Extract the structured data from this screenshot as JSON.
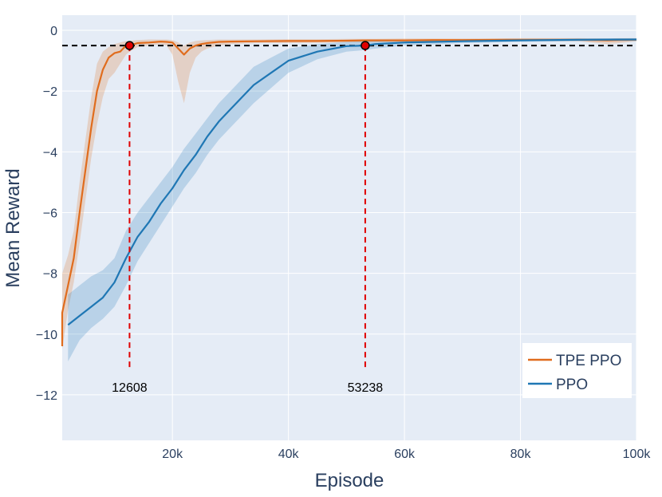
{
  "chart_data": {
    "type": "line",
    "xlabel": "Episode",
    "ylabel": "Mean Reward",
    "xlim": [
      1000,
      100000
    ],
    "ylim": [
      -13.5,
      0.5
    ],
    "x_ticks": [
      20000,
      40000,
      60000,
      80000,
      100000
    ],
    "x_tick_labels": [
      "20k",
      "40k",
      "60k",
      "80k",
      "100k"
    ],
    "y_ticks": [
      0,
      -2,
      -4,
      -6,
      -8,
      -10,
      -12
    ],
    "y_tick_labels": [
      "0",
      "−2",
      "−4",
      "−6",
      "−8",
      "−10",
      "−12"
    ],
    "grid": true,
    "legend_position": "bottom-right",
    "threshold": -0.5,
    "colors": {
      "tpe": "#e06c1d",
      "ppo": "#1f77b4",
      "marker": "#e00000",
      "plot_bg": "#e5ecf6"
    },
    "series": [
      {
        "name": "TPE PPO",
        "x": [
          0,
          1000,
          2000,
          3000,
          4000,
          5000,
          6000,
          7000,
          8000,
          9000,
          10000,
          11000,
          12000,
          12608,
          14000,
          16000,
          18000,
          19000,
          20000,
          21000,
          22000,
          23000,
          24000,
          25000,
          26000,
          28000,
          30000,
          35000,
          40000,
          45000,
          50000,
          53238,
          55000,
          60000,
          65000,
          70000,
          80000,
          90000,
          95000,
          97000,
          100000
        ],
        "y": [
          -10.4,
          -9.3,
          -8.4,
          -7.5,
          -6,
          -4.6,
          -3.2,
          -2,
          -1.3,
          -0.9,
          -0.75,
          -0.7,
          -0.5,
          -0.5,
          -0.42,
          -0.4,
          -0.37,
          -0.38,
          -0.4,
          -0.6,
          -0.8,
          -0.6,
          -0.5,
          -0.45,
          -0.42,
          -0.38,
          -0.37,
          -0.36,
          -0.35,
          -0.35,
          -0.34,
          -0.33,
          -0.33,
          -0.33,
          -0.32,
          -0.32,
          -0.31,
          -0.31,
          -0.33,
          -0.32,
          -0.31
        ],
        "lower": [
          -12.8,
          -10.5,
          -9.2,
          -8.3,
          -7,
          -5.6,
          -4.2,
          -3.1,
          -2.2,
          -1.6,
          -1.4,
          -1.1,
          -0.8,
          -0.7,
          -0.55,
          -0.5,
          -0.45,
          -0.5,
          -0.8,
          -1.7,
          -2.4,
          -1.4,
          -0.9,
          -0.7,
          -0.6,
          -0.5,
          -0.45,
          -0.42,
          -0.42,
          -0.41,
          -0.4,
          -0.4,
          -0.39,
          -0.38,
          -0.37,
          -0.36,
          -0.35,
          -0.36,
          -0.45,
          -0.42,
          -0.36
        ],
        "upper": [
          -8.5,
          -8,
          -7.4,
          -6.6,
          -5,
          -3.6,
          -2.2,
          -1.1,
          -0.7,
          -0.55,
          -0.45,
          -0.4,
          -0.35,
          -0.35,
          -0.32,
          -0.3,
          -0.3,
          -0.3,
          -0.32,
          -0.4,
          -0.5,
          -0.4,
          -0.35,
          -0.33,
          -0.32,
          -0.3,
          -0.3,
          -0.3,
          -0.29,
          -0.29,
          -0.28,
          -0.28,
          -0.28,
          -0.27,
          -0.27,
          -0.27,
          -0.26,
          -0.26,
          -0.27,
          -0.26,
          -0.26
        ]
      },
      {
        "name": "PPO",
        "x": [
          2000,
          4000,
          6000,
          8000,
          10000,
          12000,
          14000,
          16000,
          18000,
          20000,
          22000,
          24000,
          26000,
          28000,
          30000,
          32000,
          34000,
          37000,
          40000,
          45000,
          50000,
          53238,
          55000,
          60000,
          70000,
          80000,
          90000,
          100000
        ],
        "y": [
          -9.7,
          -9.4,
          -9.1,
          -8.8,
          -8.3,
          -7.5,
          -6.8,
          -6.3,
          -5.7,
          -5.2,
          -4.6,
          -4.1,
          -3.5,
          -3.0,
          -2.6,
          -2.2,
          -1.8,
          -1.4,
          -1.0,
          -0.7,
          -0.52,
          -0.5,
          -0.45,
          -0.4,
          -0.36,
          -0.33,
          -0.31,
          -0.3
        ],
        "lower": [
          -10.9,
          -10.2,
          -9.8,
          -9.5,
          -9.1,
          -8.4,
          -7.6,
          -7.0,
          -6.4,
          -5.8,
          -5.2,
          -4.7,
          -4.1,
          -3.6,
          -3.2,
          -2.8,
          -2.4,
          -1.9,
          -1.4,
          -0.95,
          -0.7,
          -0.65,
          -0.6,
          -0.5,
          -0.42,
          -0.38,
          -0.36,
          -0.35
        ],
        "upper": [
          -8.7,
          -8.4,
          -8.1,
          -7.9,
          -7.5,
          -6.6,
          -6.0,
          -5.5,
          -5.0,
          -4.5,
          -3.9,
          -3.4,
          -2.9,
          -2.4,
          -2.0,
          -1.6,
          -1.2,
          -0.9,
          -0.6,
          -0.45,
          -0.38,
          -0.36,
          -0.34,
          -0.32,
          -0.3,
          -0.28,
          -0.27,
          -0.26
        ]
      }
    ],
    "annotations": [
      {
        "x": 12608,
        "y": -0.5,
        "text": "12608",
        "series": "TPE PPO"
      },
      {
        "x": 53238,
        "y": -0.5,
        "text": "53238",
        "series": "PPO"
      }
    ]
  }
}
